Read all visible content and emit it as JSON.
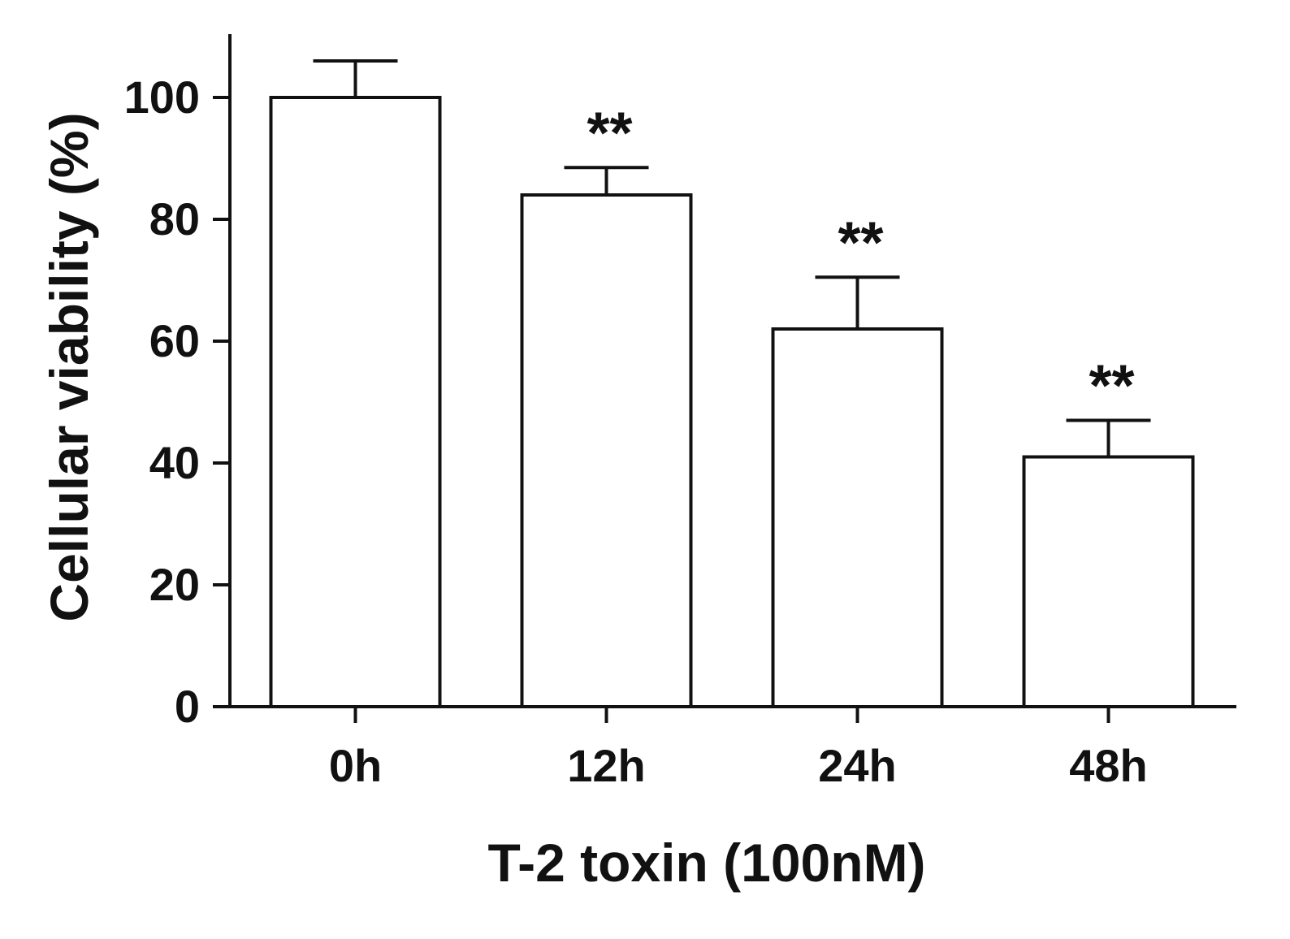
{
  "chart_data": {
    "type": "bar",
    "xlabel": "T-2 toxin (100nM)",
    "ylabel": "Cellular viability (%)",
    "ylim": [
      0,
      110
    ],
    "yticks": [
      0,
      20,
      40,
      60,
      80,
      100
    ],
    "categories": [
      "0h",
      "12h",
      "24h",
      "48h"
    ],
    "values": [
      100,
      84,
      62,
      41
    ],
    "errors": [
      6,
      4.5,
      8.5,
      6
    ],
    "annotations": [
      "",
      "**",
      "**",
      "**"
    ],
    "grid": false,
    "legend": "none",
    "colors": {
      "bar_fill": "#ffffff",
      "stroke": "#111111"
    }
  }
}
